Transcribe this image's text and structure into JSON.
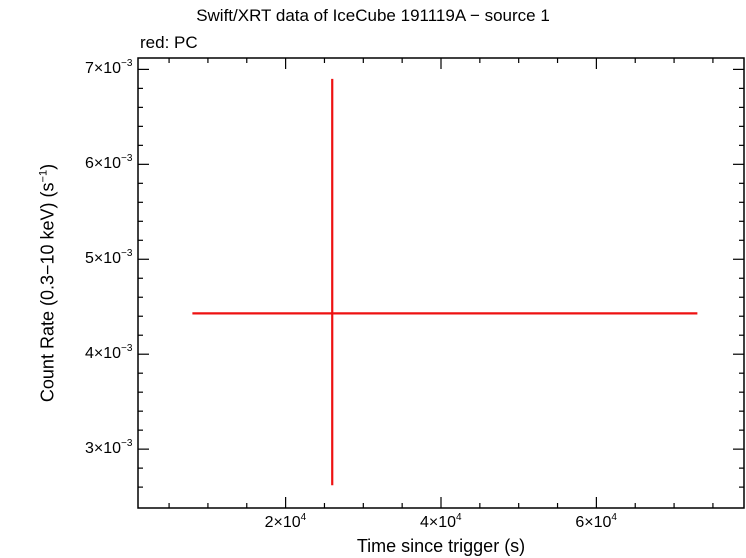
{
  "chart_data": {
    "type": "scatter",
    "title": "Swift/XRT data of IceCube 191119A − source 1",
    "subtitle": "red: PC",
    "xlabel": "Time since trigger (s)",
    "ylabel_main": "Count Rate (0.3−10 keV) (s",
    "ylabel_sup": "−1",
    "ylabel_end": ")",
    "xlim": [
      1000,
      79000
    ],
    "ylim": [
      0.00238,
      0.00712
    ],
    "x_ticks": [
      {
        "value": 20000,
        "mantissa": "2×10",
        "exp": "4"
      },
      {
        "value": 40000,
        "mantissa": "4×10",
        "exp": "4"
      },
      {
        "value": 60000,
        "mantissa": "6×10",
        "exp": "4"
      }
    ],
    "y_ticks": [
      {
        "value": 0.003,
        "mantissa": "3×10",
        "exp": "−3"
      },
      {
        "value": 0.004,
        "mantissa": "4×10",
        "exp": "−3"
      },
      {
        "value": 0.005,
        "mantissa": "5×10",
        "exp": "−3"
      },
      {
        "value": 0.006,
        "mantissa": "6×10",
        "exp": "−3"
      },
      {
        "value": 0.007,
        "mantissa": "7×10",
        "exp": "−3"
      }
    ],
    "series": [
      {
        "color": "#ee1111",
        "points": [
          {
            "x": 26000,
            "y": 0.00443,
            "x_lo": 8000,
            "x_hi": 73000,
            "y_lo": 0.00262,
            "y_hi": 0.0069
          }
        ]
      }
    ]
  }
}
